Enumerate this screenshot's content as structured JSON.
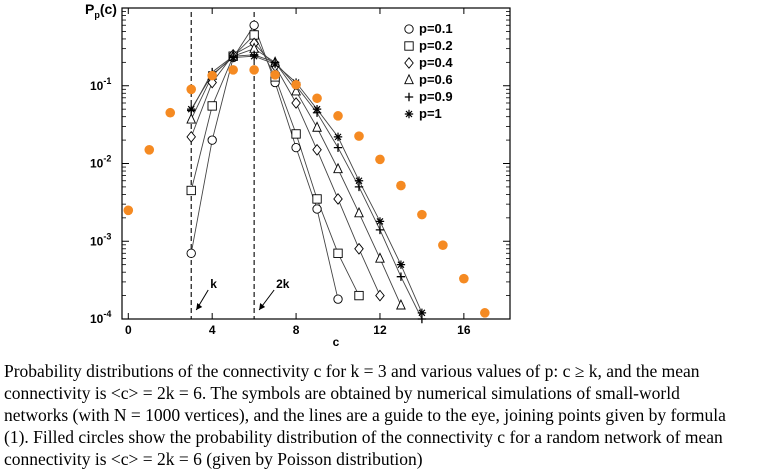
{
  "chart_data": {
    "type": "scatter",
    "y_axis_label": "P_p(c)",
    "y_axis_label_main": "P",
    "y_axis_label_sub": "p",
    "y_axis_label_arg": "(c)",
    "x_axis_label": "c",
    "x_ticks": [
      "0",
      "4",
      "8",
      "12",
      "16"
    ],
    "y_ticks": [
      {
        "base": "10",
        "exp": "-1",
        "value": 0.1
      },
      {
        "base": "10",
        "exp": "-2",
        "value": 0.01
      },
      {
        "base": "10",
        "exp": "-3",
        "value": 0.001
      },
      {
        "base": "10",
        "exp": "-4",
        "value": 0.0001
      }
    ],
    "xlim": [
      -0.3,
      18.2
    ],
    "ylim": [
      0.0001,
      1.0
    ],
    "y_scale": "log",
    "legend_position": "top-right",
    "reference_lines": [
      {
        "x": 3,
        "label": "k"
      },
      {
        "x": 6,
        "label": "2k"
      }
    ],
    "series": [
      {
        "name": "p=0.1",
        "marker": "circle",
        "connected": true,
        "x": [
          3,
          4,
          5,
          6,
          7,
          8,
          9,
          10
        ],
        "y": [
          0.0007,
          0.02,
          0.23,
          0.6,
          0.11,
          0.016,
          0.0026,
          0.00018
        ]
      },
      {
        "name": "p=0.2",
        "marker": "square",
        "connected": true,
        "x": [
          3,
          4,
          5,
          6,
          7,
          8,
          9,
          10,
          11
        ],
        "y": [
          0.0045,
          0.055,
          0.24,
          0.45,
          0.13,
          0.024,
          0.0035,
          0.0007,
          0.0002
        ]
      },
      {
        "name": "p=0.4",
        "marker": "diamond",
        "connected": true,
        "x": [
          3,
          4,
          5,
          6,
          7,
          8,
          9,
          10,
          11,
          12
        ],
        "y": [
          0.022,
          0.11,
          0.25,
          0.35,
          0.18,
          0.06,
          0.015,
          0.0035,
          0.0008,
          0.0002
        ]
      },
      {
        "name": "p=0.6",
        "marker": "triangle",
        "connected": true,
        "x": [
          3,
          4,
          5,
          6,
          7,
          8,
          9,
          10,
          11,
          12,
          13
        ],
        "y": [
          0.037,
          0.135,
          0.24,
          0.3,
          0.2,
          0.085,
          0.029,
          0.0085,
          0.0023,
          0.0006,
          0.00015
        ]
      },
      {
        "name": "p=0.9",
        "marker": "plus",
        "connected": true,
        "x": [
          3,
          4,
          5,
          6,
          7,
          8,
          9,
          10,
          11,
          12,
          13,
          14
        ],
        "y": [
          0.048,
          0.15,
          0.24,
          0.25,
          0.2,
          0.1,
          0.045,
          0.016,
          0.005,
          0.0014,
          0.00035,
          0.0001
        ]
      },
      {
        "name": "p=1",
        "marker": "asterisk",
        "connected": true,
        "x": [
          3,
          4,
          5,
          6,
          7,
          8,
          9,
          10,
          11,
          12,
          13,
          14
        ],
        "y": [
          0.05,
          0.14,
          0.23,
          0.24,
          0.19,
          0.11,
          0.05,
          0.022,
          0.006,
          0.0018,
          0.0005,
          0.00012
        ]
      },
      {
        "name": "",
        "marker": "filled-circle",
        "connected": false,
        "color": "#f58a22",
        "x": [
          0,
          1,
          2,
          3,
          4,
          5,
          6,
          7,
          8,
          9,
          10,
          11,
          12,
          13,
          14,
          15,
          16,
          17
        ],
        "y": [
          0.0025,
          0.015,
          0.045,
          0.09,
          0.135,
          0.16,
          0.16,
          0.138,
          0.103,
          0.069,
          0.041,
          0.0225,
          0.0113,
          0.0052,
          0.0022,
          0.00089,
          0.00033,
          0.00012
        ]
      }
    ]
  },
  "caption_lines": [
    "Probability distributions of the connectivity c for k = 3 and various values of p: c ≥ k, and the mean",
    "connectivity is <c> = 2k = 6. The symbols are obtained by numerical simulations of small-world",
    "networks (with N = 1000 vertices), and the lines are a guide to the eye, joining points given by formula",
    "(1). Filled circles show the probability distribution of the connectivity c for a random network of mean",
    "connectivity is <c> = 2k = 6 (given by Poisson distribution)"
  ]
}
